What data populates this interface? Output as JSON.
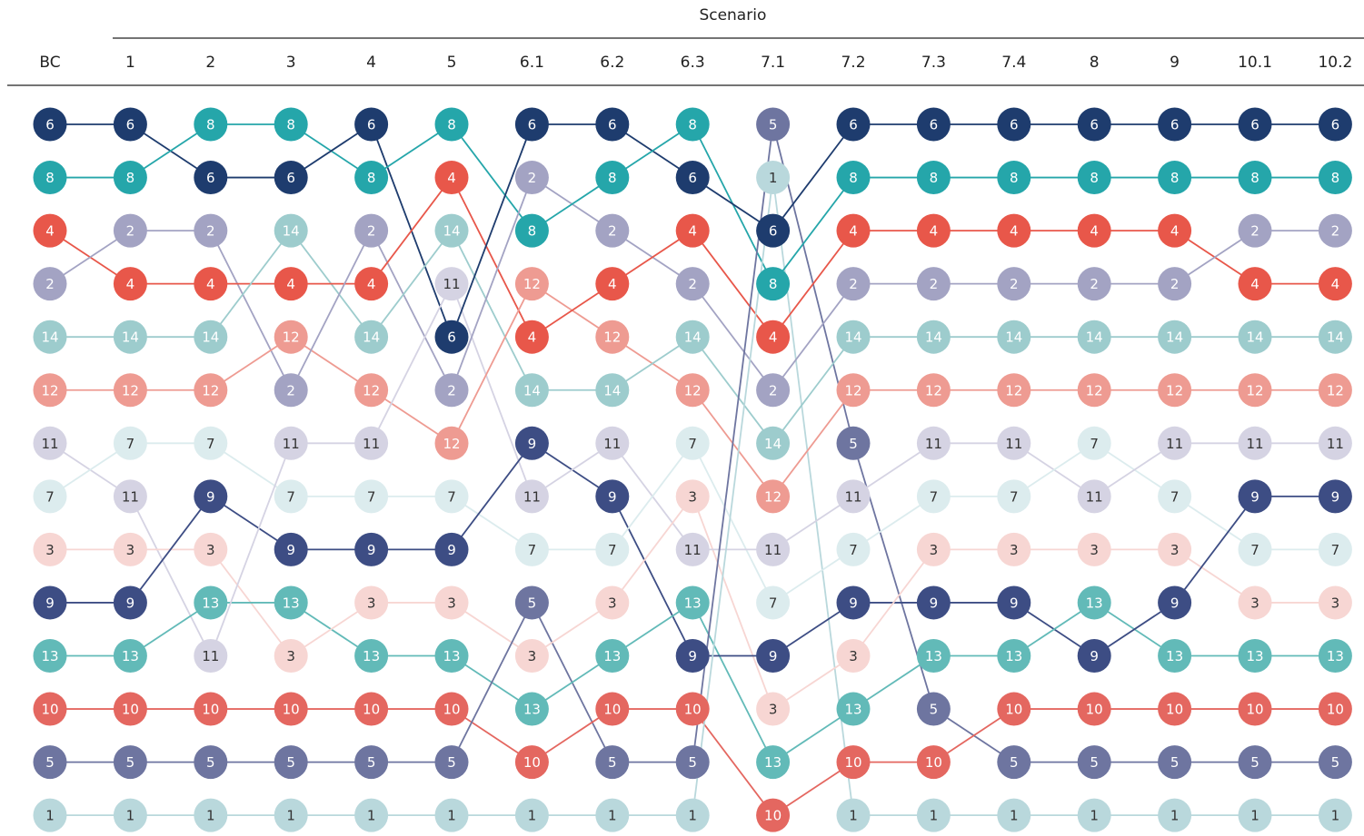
{
  "chart_data": {
    "type": "bump",
    "column_group_title": "Scenario",
    "columns": [
      "BC",
      "1",
      "2",
      "3",
      "4",
      "5",
      "6.1",
      "6.2",
      "6.3",
      "7.1",
      "7.2",
      "7.3",
      "7.4",
      "8",
      "9",
      "10.1",
      "10.2"
    ],
    "rankings": [
      [
        6,
        8,
        4,
        2,
        14,
        12,
        11,
        7,
        3,
        9,
        13,
        10,
        5,
        1
      ],
      [
        6,
        8,
        2,
        4,
        14,
        12,
        7,
        11,
        3,
        9,
        13,
        10,
        5,
        1
      ],
      [
        8,
        6,
        2,
        4,
        14,
        12,
        7,
        9,
        3,
        13,
        11,
        10,
        5,
        1
      ],
      [
        8,
        6,
        14,
        4,
        12,
        2,
        11,
        7,
        9,
        13,
        3,
        10,
        5,
        1
      ],
      [
        6,
        8,
        2,
        4,
        14,
        12,
        11,
        7,
        9,
        3,
        13,
        10,
        5,
        1
      ],
      [
        8,
        4,
        14,
        11,
        6,
        2,
        12,
        7,
        9,
        3,
        13,
        10,
        5,
        1
      ],
      [
        6,
        2,
        8,
        12,
        4,
        14,
        9,
        11,
        7,
        5,
        3,
        13,
        10,
        1
      ],
      [
        6,
        8,
        2,
        4,
        12,
        14,
        11,
        9,
        7,
        3,
        13,
        10,
        5,
        1
      ],
      [
        8,
        6,
        4,
        2,
        14,
        12,
        7,
        3,
        11,
        13,
        9,
        10,
        5,
        1
      ],
      [
        5,
        1,
        6,
        8,
        4,
        2,
        14,
        12,
        11,
        7,
        9,
        3,
        13,
        10
      ],
      [
        6,
        8,
        4,
        2,
        14,
        12,
        5,
        11,
        7,
        9,
        3,
        13,
        10,
        1
      ],
      [
        6,
        8,
        4,
        2,
        14,
        12,
        11,
        7,
        3,
        9,
        13,
        5,
        10,
        1
      ],
      [
        6,
        8,
        4,
        2,
        14,
        12,
        11,
        7,
        3,
        9,
        13,
        10,
        5,
        1
      ],
      [
        6,
        8,
        4,
        2,
        14,
        12,
        7,
        11,
        3,
        13,
        9,
        10,
        5,
        1
      ],
      [
        6,
        8,
        4,
        2,
        14,
        12,
        11,
        7,
        3,
        9,
        13,
        10,
        5,
        1
      ],
      [
        6,
        8,
        2,
        4,
        14,
        12,
        11,
        9,
        7,
        3,
        13,
        10,
        5,
        1
      ],
      [
        6,
        8,
        2,
        4,
        14,
        12,
        11,
        9,
        7,
        3,
        13,
        10,
        5,
        1
      ]
    ],
    "item_colors": {
      "1": "#b9d8dc",
      "2": "#a3a3c3",
      "3": "#f7d6d3",
      "4": "#e8574a",
      "5": "#6e75a0",
      "6": "#1e3c6e",
      "7": "#dcecee",
      "8": "#25a6aa",
      "9": "#3d4d84",
      "10": "#e46760",
      "11": "#d5d3e3",
      "12": "#ee9b92",
      "13": "#62bab8",
      "14": "#9dcccd"
    },
    "dark_text_items": [
      1,
      3,
      7,
      11
    ]
  }
}
